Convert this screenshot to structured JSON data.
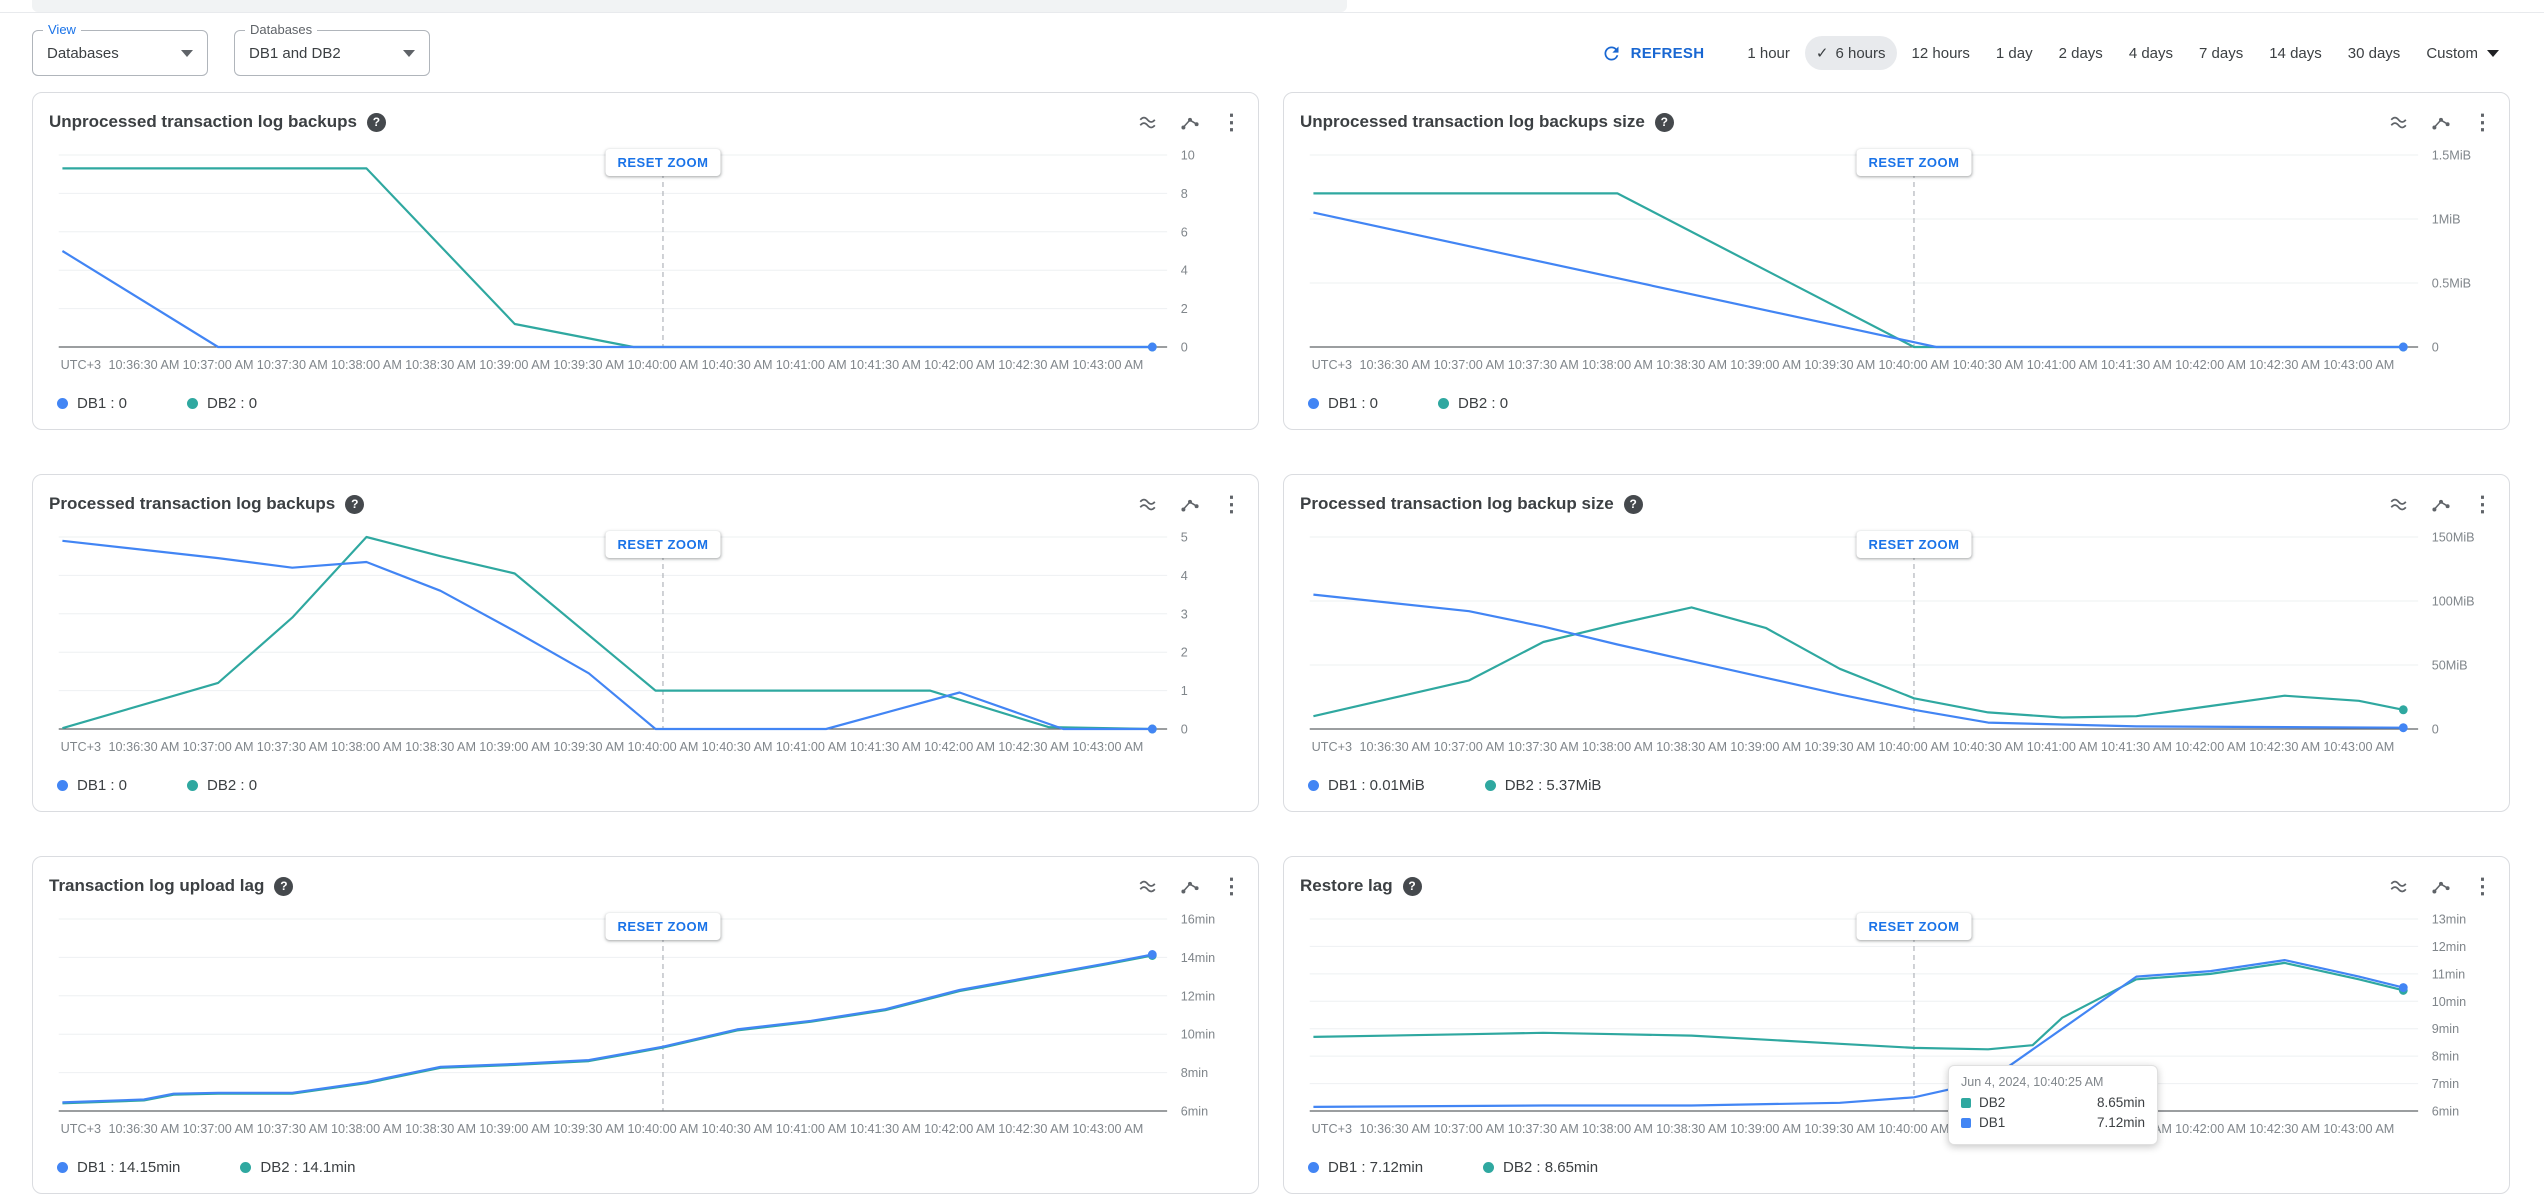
{
  "icons": {
    "check": "✓",
    "more": "⋮",
    "help": "?"
  },
  "toolbar": {
    "view_label": "View",
    "view_value": "Databases",
    "databases_label": "Databases",
    "databases_value": "DB1 and DB2",
    "refresh_label": "REFRESH",
    "time_ranges": [
      "1 hour",
      "6 hours",
      "12 hours",
      "1 day",
      "2 days",
      "4 days",
      "7 days",
      "14 days",
      "30 days"
    ],
    "selected_range": "6 hours",
    "custom_label": "Custom"
  },
  "reset_zoom_label": "RESET ZOOM",
  "zoom_marker_tick": 7,
  "colors": {
    "db1": "#4285f4",
    "db2": "#2fa8a0"
  },
  "x_axis": {
    "utc_label": "UTC+3",
    "ticks": [
      "10:36:30 AM",
      "10:37:00 AM",
      "10:37:30 AM",
      "10:38:00 AM",
      "10:38:30 AM",
      "10:39:00 AM",
      "10:39:30 AM",
      "10:40:00 AM",
      "10:40:30 AM",
      "10:41:00 AM",
      "10:41:30 AM",
      "10:42:00 AM",
      "10:42:30 AM",
      "10:43:00 AM"
    ]
  },
  "charts": [
    {
      "type": "line",
      "title": "Unprocessed transaction log backups",
      "ylim": [
        0,
        10
      ],
      "yticks": [
        {
          "v": 0,
          "label": "0"
        },
        {
          "v": 2,
          "label": "2"
        },
        {
          "v": 4,
          "label": "4"
        },
        {
          "v": 6,
          "label": "6"
        },
        {
          "v": 8,
          "label": "8"
        },
        {
          "v": 10,
          "label": "10"
        }
      ],
      "series": [
        {
          "name": "DB1",
          "color": "#4285f4",
          "legend": "DB1 : 0",
          "points": [
            [
              -1.1,
              5.0
            ],
            [
              1,
              0
            ],
            [
              13.6,
              0
            ]
          ]
        },
        {
          "name": "DB2",
          "color": "#2fa8a0",
          "legend": "DB2 : 0",
          "points": [
            [
              -1.1,
              9.3
            ],
            [
              3,
              9.3
            ],
            [
              5,
              1.2
            ],
            [
              6.6,
              0
            ],
            [
              13.6,
              0
            ]
          ]
        }
      ]
    },
    {
      "type": "line",
      "title": "Unprocessed transaction log backups size",
      "ylim": [
        0,
        1.5
      ],
      "yticks": [
        {
          "v": 0,
          "label": "0"
        },
        {
          "v": 0.5,
          "label": "0.5MiB"
        },
        {
          "v": 1,
          "label": "1MiB"
        },
        {
          "v": 1.5,
          "label": "1.5MiB"
        }
      ],
      "series": [
        {
          "name": "DB1",
          "color": "#4285f4",
          "legend": "DB1 : 0",
          "points": [
            [
              -1.1,
              1.05
            ],
            [
              7.3,
              0
            ],
            [
              13.6,
              0
            ]
          ]
        },
        {
          "name": "DB2",
          "color": "#2fa8a0",
          "legend": "DB2 : 0",
          "points": [
            [
              -1.1,
              1.2
            ],
            [
              3,
              1.2
            ],
            [
              7,
              0
            ],
            [
              13.6,
              0
            ]
          ]
        }
      ]
    },
    {
      "type": "line",
      "title": "Processed transaction log backups",
      "ylim": [
        0,
        5
      ],
      "yticks": [
        {
          "v": 0,
          "label": "0"
        },
        {
          "v": 1,
          "label": "1"
        },
        {
          "v": 2,
          "label": "2"
        },
        {
          "v": 3,
          "label": "3"
        },
        {
          "v": 4,
          "label": "4"
        },
        {
          "v": 5,
          "label": "5"
        }
      ],
      "series": [
        {
          "name": "DB1",
          "color": "#4285f4",
          "legend": "DB1 : 0",
          "points": [
            [
              -1.1,
              4.9
            ],
            [
              1,
              4.45
            ],
            [
              2,
              4.2
            ],
            [
              3,
              4.35
            ],
            [
              4,
              3.6
            ],
            [
              5,
              2.55
            ],
            [
              6,
              1.45
            ],
            [
              6.9,
              0
            ],
            [
              9.2,
              0
            ],
            [
              11,
              0.95
            ],
            [
              12.4,
              0
            ],
            [
              13.6,
              0
            ]
          ]
        },
        {
          "name": "DB2",
          "color": "#2fa8a0",
          "legend": "DB2 : 0",
          "points": [
            [
              -1.1,
              0.02
            ],
            [
              1,
              1.2
            ],
            [
              2,
              2.9
            ],
            [
              3,
              5.0
            ],
            [
              4,
              4.5
            ],
            [
              5,
              4.05
            ],
            [
              6.9,
              1.0
            ],
            [
              10.6,
              1.0
            ],
            [
              12.2,
              0.05
            ],
            [
              13.6,
              0
            ]
          ]
        }
      ]
    },
    {
      "type": "line",
      "title": "Processed transaction log backup size",
      "ylim": [
        0,
        150
      ],
      "yticks": [
        {
          "v": 0,
          "label": "0"
        },
        {
          "v": 50,
          "label": "50MiB"
        },
        {
          "v": 100,
          "label": "100MiB"
        },
        {
          "v": 150,
          "label": "150MiB"
        }
      ],
      "series": [
        {
          "name": "DB1",
          "color": "#4285f4",
          "legend": "DB1 : 0.01MiB",
          "points": [
            [
              -1.1,
              105
            ],
            [
              1,
              92
            ],
            [
              2,
              80
            ],
            [
              3,
              66
            ],
            [
              4,
              53
            ],
            [
              5,
              40
            ],
            [
              6,
              27
            ],
            [
              7,
              15
            ],
            [
              8,
              5
            ],
            [
              10,
              2
            ],
            [
              13.6,
              1
            ]
          ]
        },
        {
          "name": "DB2",
          "color": "#2fa8a0",
          "legend": "DB2 : 5.37MiB",
          "points": [
            [
              -1.1,
              10
            ],
            [
              1,
              38
            ],
            [
              2,
              68
            ],
            [
              3,
              82
            ],
            [
              4,
              95
            ],
            [
              5,
              79
            ],
            [
              6,
              47
            ],
            [
              7,
              24
            ],
            [
              8,
              13
            ],
            [
              9,
              9
            ],
            [
              10,
              10
            ],
            [
              11,
              18
            ],
            [
              12,
              26
            ],
            [
              13,
              22
            ],
            [
              13.6,
              15
            ]
          ]
        }
      ]
    },
    {
      "type": "line",
      "title": "Transaction log upload lag",
      "ylim": [
        6,
        16
      ],
      "yticks": [
        {
          "v": 6,
          "label": "6min"
        },
        {
          "v": 8,
          "label": "8min"
        },
        {
          "v": 10,
          "label": "10min"
        },
        {
          "v": 12,
          "label": "12min"
        },
        {
          "v": 14,
          "label": "14min"
        },
        {
          "v": 16,
          "label": "16min"
        }
      ],
      "series": [
        {
          "name": "DB1",
          "color": "#4285f4",
          "legend": "DB1 : 14.15min",
          "points": [
            [
              -1.1,
              6.45
            ],
            [
              0,
              6.6
            ],
            [
              0.4,
              6.9
            ],
            [
              1,
              6.95
            ],
            [
              2,
              6.95
            ],
            [
              3,
              7.5
            ],
            [
              4,
              8.3
            ],
            [
              5,
              8.45
            ],
            [
              6,
              8.65
            ],
            [
              7,
              9.35
            ],
            [
              8,
              10.25
            ],
            [
              9,
              10.7
            ],
            [
              10,
              11.3
            ],
            [
              11,
              12.3
            ],
            [
              12,
              13.0
            ],
            [
              13,
              13.7
            ],
            [
              13.6,
              14.15
            ]
          ]
        },
        {
          "name": "DB2",
          "color": "#2fa8a0",
          "legend": "DB2 : 14.1min",
          "points": [
            [
              -1.1,
              6.4
            ],
            [
              0,
              6.55
            ],
            [
              0.4,
              6.85
            ],
            [
              1,
              6.9
            ],
            [
              2,
              6.9
            ],
            [
              3,
              7.45
            ],
            [
              4,
              8.25
            ],
            [
              5,
              8.4
            ],
            [
              6,
              8.6
            ],
            [
              7,
              9.3
            ],
            [
              8,
              10.2
            ],
            [
              9,
              10.65
            ],
            [
              10,
              11.25
            ],
            [
              11,
              12.25
            ],
            [
              12,
              12.95
            ],
            [
              13,
              13.65
            ],
            [
              13.6,
              14.1
            ]
          ]
        }
      ]
    },
    {
      "type": "line",
      "title": "Restore lag",
      "ylim": [
        6,
        13
      ],
      "yticks": [
        {
          "v": 6,
          "label": "6min"
        },
        {
          "v": 7,
          "label": "7min"
        },
        {
          "v": 8,
          "label": "8min"
        },
        {
          "v": 9,
          "label": "9min"
        },
        {
          "v": 10,
          "label": "10min"
        },
        {
          "v": 11,
          "label": "11min"
        },
        {
          "v": 12,
          "label": "12min"
        },
        {
          "v": 13,
          "label": "13min"
        }
      ],
      "series": [
        {
          "name": "DB1",
          "color": "#4285f4",
          "legend": "DB1 : 7.12min",
          "points": [
            [
              -1.1,
              6.15
            ],
            [
              2,
              6.2
            ],
            [
              4,
              6.2
            ],
            [
              6,
              6.3
            ],
            [
              7,
              6.5
            ],
            [
              8,
              7.1
            ],
            [
              9,
              9.0
            ],
            [
              10,
              10.9
            ],
            [
              11,
              11.1
            ],
            [
              12,
              11.5
            ],
            [
              13,
              10.9
            ],
            [
              13.6,
              10.5
            ]
          ]
        },
        {
          "name": "DB2",
          "color": "#2fa8a0",
          "legend": "DB2 : 8.65min",
          "points": [
            [
              -1.1,
              8.7
            ],
            [
              1,
              8.8
            ],
            [
              2,
              8.85
            ],
            [
              3,
              8.8
            ],
            [
              4,
              8.75
            ],
            [
              5,
              8.6
            ],
            [
              6,
              8.45
            ],
            [
              7,
              8.3
            ],
            [
              8,
              8.25
            ],
            [
              8.6,
              8.4
            ],
            [
              9,
              9.4
            ],
            [
              10,
              10.8
            ],
            [
              11,
              11.0
            ],
            [
              12,
              11.4
            ],
            [
              13,
              10.8
            ],
            [
              13.6,
              10.4
            ]
          ]
        }
      ],
      "tooltip": {
        "date": "Jun 4, 2024, 10:40:25 AM",
        "rows": [
          {
            "name": "DB2",
            "value": "8.65min",
            "color": "#2fa8a0"
          },
          {
            "name": "DB1",
            "value": "7.12min",
            "color": "#4285f4"
          }
        ]
      }
    }
  ]
}
